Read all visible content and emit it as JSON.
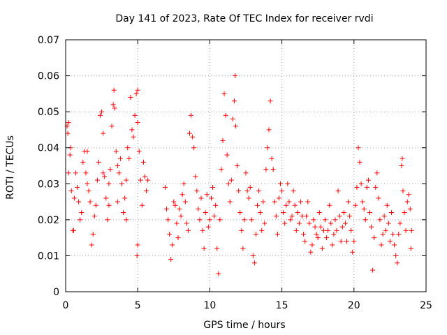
{
  "chart_data": {
    "type": "scatter",
    "title": "Day 141 of 2023, Rate Of TEC Index for receiver rvdi",
    "xlabel": "GPS time / hours",
    "ylabel": "ROTI / TECUs",
    "xlim": [
      0,
      25
    ],
    "ylim": [
      0,
      0.07
    ],
    "xticks": [
      0,
      5,
      10,
      15,
      20,
      25
    ],
    "xtick_labels": [
      "0",
      "5",
      "10",
      "15",
      "20",
      "25"
    ],
    "yticks": [
      0,
      0.01,
      0.02,
      0.03,
      0.04,
      0.05,
      0.06,
      0.07
    ],
    "ytick_labels": [
      "0",
      "0.01",
      "0.02",
      "0.03",
      "0.04",
      "0.05",
      "0.06",
      "0.07"
    ],
    "grid": true,
    "marker": "plus",
    "color": "#ff0000",
    "series": [
      {
        "points": [
          [
            0.1,
            0.046
          ],
          [
            0.15,
            0.044
          ],
          [
            0.2,
            0.047
          ],
          [
            0.2,
            0.033
          ],
          [
            0.3,
            0.038
          ],
          [
            0.35,
            0.04
          ],
          [
            0.4,
            0.028
          ],
          [
            0.5,
            0.017
          ],
          [
            0.55,
            0.017
          ],
          [
            0.6,
            0.026
          ],
          [
            0.7,
            0.033
          ],
          [
            0.8,
            0.029
          ],
          [
            0.9,
            0.025
          ],
          [
            1.0,
            0.02
          ],
          [
            1.1,
            0.022
          ],
          [
            1.2,
            0.036
          ],
          [
            1.3,
            0.039
          ],
          [
            1.4,
            0.033
          ],
          [
            1.5,
            0.03
          ],
          [
            1.6,
            0.028
          ],
          [
            1.7,
            0.025
          ],
          [
            1.8,
            0.013
          ],
          [
            1.9,
            0.016
          ],
          [
            2.0,
            0.021
          ],
          [
            2.1,
            0.024
          ],
          [
            2.2,
            0.031
          ],
          [
            2.3,
            0.036
          ],
          [
            2.4,
            0.049
          ],
          [
            2.5,
            0.05
          ],
          [
            2.6,
            0.044
          ],
          [
            2.7,
            0.032
          ],
          [
            2.8,
            0.026
          ],
          [
            2.9,
            0.02
          ],
          [
            3.0,
            0.024
          ],
          [
            3.1,
            0.034
          ],
          [
            3.2,
            0.046
          ],
          [
            3.3,
            0.052
          ],
          [
            3.35,
            0.056
          ],
          [
            3.4,
            0.051
          ],
          [
            3.5,
            0.039
          ],
          [
            3.6,
            0.035
          ],
          [
            3.7,
            0.033
          ],
          [
            3.8,
            0.037
          ],
          [
            3.9,
            0.03
          ],
          [
            4.0,
            0.022
          ],
          [
            4.1,
            0.026
          ],
          [
            4.2,
            0.031
          ],
          [
            4.3,
            0.04
          ],
          [
            4.4,
            0.037
          ],
          [
            4.5,
            0.054
          ],
          [
            4.6,
            0.045
          ],
          [
            4.7,
            0.043
          ],
          [
            4.8,
            0.049
          ],
          [
            4.9,
            0.055
          ],
          [
            5.0,
            0.056
          ],
          [
            5.0,
            0.047
          ],
          [
            5.1,
            0.039
          ],
          [
            5.2,
            0.031
          ],
          [
            5.3,
            0.024
          ],
          [
            5.4,
            0.036
          ],
          [
            5.5,
            0.032
          ],
          [
            5.6,
            0.028
          ],
          [
            5.7,
            0.031
          ],
          [
            4.95,
            0.01
          ],
          [
            5.0,
            0.013
          ],
          [
            4.2,
            0.02
          ],
          [
            3.6,
            0.025
          ],
          [
            3.0,
            0.03
          ],
          [
            2.6,
            0.033
          ],
          [
            1.5,
            0.039
          ],
          [
            6.9,
            0.029
          ],
          [
            7.0,
            0.023
          ],
          [
            7.1,
            0.02
          ],
          [
            7.2,
            0.016
          ],
          [
            7.3,
            0.009
          ],
          [
            7.4,
            0.013
          ],
          [
            7.5,
            0.025
          ],
          [
            7.6,
            0.024
          ],
          [
            7.7,
            0.019
          ],
          [
            7.8,
            0.015
          ],
          [
            7.9,
            0.023
          ],
          [
            8.0,
            0.021
          ],
          [
            8.1,
            0.027
          ],
          [
            8.2,
            0.03
          ],
          [
            8.3,
            0.025
          ],
          [
            8.4,
            0.019
          ],
          [
            8.5,
            0.017
          ],
          [
            8.6,
            0.044
          ],
          [
            8.7,
            0.049
          ],
          [
            8.8,
            0.043
          ],
          [
            8.9,
            0.04
          ],
          [
            9.0,
            0.032
          ],
          [
            9.1,
            0.028
          ],
          [
            9.2,
            0.023
          ],
          [
            9.3,
            0.02
          ],
          [
            9.4,
            0.026
          ],
          [
            9.5,
            0.017
          ],
          [
            9.6,
            0.012
          ],
          [
            9.7,
            0.022
          ],
          [
            9.8,
            0.027
          ],
          [
            9.9,
            0.018
          ],
          [
            10.0,
            0.02
          ],
          [
            10.1,
            0.026
          ],
          [
            10.2,
            0.029
          ],
          [
            10.3,
            0.021
          ],
          [
            10.4,
            0.024
          ],
          [
            10.5,
            0.012
          ],
          [
            10.6,
            0.005
          ],
          [
            10.7,
            0.02
          ],
          [
            10.8,
            0.034
          ],
          [
            10.9,
            0.042
          ],
          [
            11.0,
            0.055
          ],
          [
            11.1,
            0.049
          ],
          [
            11.2,
            0.038
          ],
          [
            11.3,
            0.03
          ],
          [
            11.4,
            0.025
          ],
          [
            11.5,
            0.031
          ],
          [
            11.6,
            0.048
          ],
          [
            11.7,
            0.053
          ],
          [
            11.75,
            0.06
          ],
          [
            11.8,
            0.046
          ],
          [
            11.9,
            0.035
          ],
          [
            12.0,
            0.028
          ],
          [
            12.1,
            0.022
          ],
          [
            12.2,
            0.017
          ],
          [
            12.3,
            0.012
          ],
          [
            12.4,
            0.02
          ],
          [
            12.5,
            0.033
          ],
          [
            12.6,
            0.028
          ],
          [
            12.7,
            0.026
          ],
          [
            12.8,
            0.029
          ],
          [
            12.9,
            0.02
          ],
          [
            13.0,
            0.01
          ],
          [
            13.1,
            0.008
          ],
          [
            13.2,
            0.016
          ],
          [
            13.3,
            0.024
          ],
          [
            13.4,
            0.028
          ],
          [
            13.5,
            0.022
          ],
          [
            13.6,
            0.017
          ],
          [
            13.7,
            0.025
          ],
          [
            13.8,
            0.019
          ],
          [
            13.9,
            0.034
          ],
          [
            14.0,
            0.04
          ],
          [
            14.1,
            0.045
          ],
          [
            14.2,
            0.053
          ],
          [
            14.3,
            0.037
          ],
          [
            14.4,
            0.034
          ],
          [
            14.5,
            0.025
          ],
          [
            14.6,
            0.021
          ],
          [
            14.7,
            0.016
          ],
          [
            14.8,
            0.026
          ],
          [
            14.9,
            0.03
          ],
          [
            15.0,
            0.028
          ],
          [
            15.1,
            0.022
          ],
          [
            15.2,
            0.019
          ],
          [
            15.3,
            0.024
          ],
          [
            15.4,
            0.03
          ],
          [
            15.5,
            0.025
          ],
          [
            15.6,
            0.02
          ],
          [
            15.7,
            0.021
          ],
          [
            15.8,
            0.028
          ],
          [
            15.9,
            0.024
          ],
          [
            16.0,
            0.017
          ],
          [
            16.1,
            0.022
          ],
          [
            16.2,
            0.019
          ],
          [
            16.3,
            0.025
          ],
          [
            16.4,
            0.021
          ],
          [
            16.5,
            0.016
          ],
          [
            16.6,
            0.014
          ],
          [
            16.7,
            0.021
          ],
          [
            16.8,
            0.025
          ],
          [
            16.9,
            0.019
          ],
          [
            17.0,
            0.011
          ],
          [
            17.1,
            0.013
          ],
          [
            17.2,
            0.02
          ],
          [
            17.3,
            0.018
          ],
          [
            17.4,
            0.016
          ],
          [
            17.5,
            0.015
          ],
          [
            17.6,
            0.022
          ],
          [
            17.7,
            0.018
          ],
          [
            17.8,
            0.012
          ],
          [
            17.9,
            0.017
          ],
          [
            18.0,
            0.02
          ],
          [
            18.1,
            0.015
          ],
          [
            18.2,
            0.017
          ],
          [
            18.3,
            0.024
          ],
          [
            18.4,
            0.019
          ],
          [
            18.5,
            0.013
          ],
          [
            18.6,
            0.016
          ],
          [
            18.7,
            0.02
          ],
          [
            18.8,
            0.017
          ],
          [
            18.9,
            0.028
          ],
          [
            19.0,
            0.021
          ],
          [
            19.1,
            0.014
          ],
          [
            19.2,
            0.018
          ],
          [
            19.3,
            0.022
          ],
          [
            19.4,
            0.019
          ],
          [
            19.5,
            0.014
          ],
          [
            19.6,
            0.025
          ],
          [
            19.7,
            0.021
          ],
          [
            19.8,
            0.017
          ],
          [
            19.9,
            0.011
          ],
          [
            20.0,
            0.014
          ],
          [
            20.1,
            0.024
          ],
          [
            20.2,
            0.029
          ],
          [
            20.3,
            0.04
          ],
          [
            20.4,
            0.036
          ],
          [
            20.5,
            0.03
          ],
          [
            20.6,
            0.025
          ],
          [
            20.7,
            0.023
          ],
          [
            20.8,
            0.02
          ],
          [
            20.9,
            0.029
          ],
          [
            21.0,
            0.031
          ],
          [
            21.1,
            0.022
          ],
          [
            21.2,
            0.018
          ],
          [
            21.3,
            0.006
          ],
          [
            21.4,
            0.015
          ],
          [
            21.5,
            0.029
          ],
          [
            21.6,
            0.033
          ],
          [
            21.7,
            0.026
          ],
          [
            21.8,
            0.02
          ],
          [
            21.9,
            0.013
          ],
          [
            22.0,
            0.016
          ],
          [
            22.1,
            0.021
          ],
          [
            22.2,
            0.017
          ],
          [
            22.3,
            0.024
          ],
          [
            22.4,
            0.019
          ],
          [
            22.5,
            0.014
          ],
          [
            22.6,
            0.022
          ],
          [
            22.7,
            0.016
          ],
          [
            22.8,
            0.013
          ],
          [
            22.9,
            0.01
          ],
          [
            23.0,
            0.008
          ],
          [
            23.1,
            0.016
          ],
          [
            23.2,
            0.019
          ],
          [
            23.3,
            0.035
          ],
          [
            23.35,
            0.037
          ],
          [
            23.4,
            0.028
          ],
          [
            23.5,
            0.022
          ],
          [
            23.6,
            0.017
          ],
          [
            23.7,
            0.025
          ],
          [
            23.8,
            0.027
          ],
          [
            23.9,
            0.023
          ],
          [
            23.95,
            0.012
          ],
          [
            24.0,
            0.017
          ]
        ]
      }
    ]
  }
}
